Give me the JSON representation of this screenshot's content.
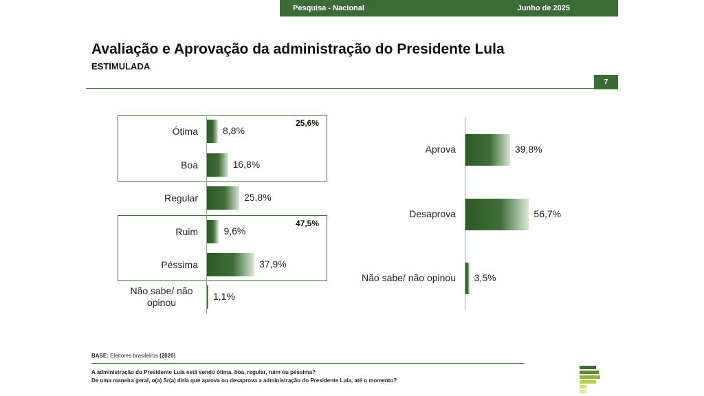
{
  "header": {
    "left": "Pesquisa - Nacional",
    "right": "Junho de 2025"
  },
  "title": "Avaliação e Aprovação da administração do Presidente Lula",
  "subtitle": "ESTIMULADA",
  "page_number": "7",
  "colors": {
    "brand_green": "#3d6b37",
    "bar_dark": "#2d5a27"
  },
  "chart_data": [
    {
      "type": "bar",
      "orientation": "horizontal",
      "categories": [
        "Ótima",
        "Boa",
        "Regular",
        "Ruim",
        "Péssima",
        "Não sabe/ não opinou"
      ],
      "values": [
        8.8,
        16.8,
        25.8,
        9.6,
        37.9,
        1.1
      ],
      "value_labels": [
        "8,8%",
        "16,8%",
        "25,8%",
        "9,6%",
        "37,9%",
        "1,1%"
      ],
      "groups": [
        {
          "members": [
            "Ótima",
            "Boa"
          ],
          "total": 25.6,
          "total_label": "25,6%"
        },
        {
          "members": [
            "Ruim",
            "Péssima"
          ],
          "total": 47.5,
          "total_label": "47,5%"
        }
      ]
    },
    {
      "type": "bar",
      "orientation": "horizontal",
      "categories": [
        "Aprova",
        "Desaprova",
        "Não sabe/ não opinou"
      ],
      "values": [
        39.8,
        56.7,
        3.5
      ],
      "value_labels": [
        "39,8%",
        "56,7%",
        "3,5%"
      ]
    }
  ],
  "footer": {
    "base_label": "BASE:",
    "base_text": "Eleitores brasileiros",
    "base_n": "(2020)",
    "question1": "A administração do Presidente Lula está sendo ótima, boa, regular, ruim ou péssima?",
    "question2": "De uma maneira geral, o(a) Sr(a) diria que aprova ou desaprova a administração do Presidente Lula, até o momento?"
  }
}
